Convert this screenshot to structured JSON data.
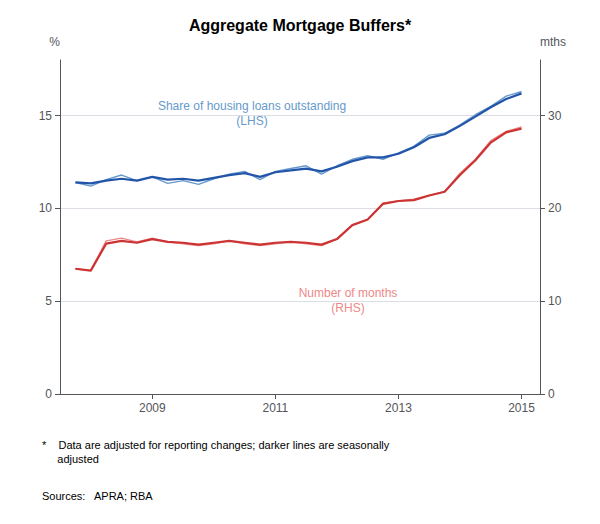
{
  "chart_data": {
    "type": "line",
    "title": "Aggregate Mortgage Buffers*",
    "ylabel": "%",
    "y2label": "mths",
    "x": [
      2007.75,
      2008.0,
      2008.25,
      2008.5,
      2008.75,
      2009.0,
      2009.25,
      2009.5,
      2009.75,
      2010.0,
      2010.25,
      2010.5,
      2010.75,
      2011.0,
      2011.25,
      2011.5,
      2011.75,
      2012.0,
      2012.25,
      2012.5,
      2012.75,
      2013.0,
      2013.25,
      2013.5,
      2013.75,
      2014.0,
      2014.25,
      2014.5,
      2014.75,
      2015.0
    ],
    "xlim": [
      2007.5,
      2015.3
    ],
    "xticks": [
      2009,
      2011,
      2013,
      2015
    ],
    "ylim": [
      0,
      18
    ],
    "yticks": [
      0,
      5,
      10,
      15
    ],
    "y2lim": [
      0,
      36
    ],
    "y2ticks": [
      0,
      10,
      20,
      30
    ],
    "grid": true,
    "series": [
      {
        "color": "#6699CC",
        "axis": "y",
        "values": [
          11.4,
          11.2,
          11.55,
          11.8,
          11.5,
          11.7,
          11.35,
          11.5,
          11.3,
          11.6,
          11.85,
          12.0,
          11.55,
          12.0,
          12.15,
          12.3,
          11.85,
          12.3,
          12.65,
          12.85,
          12.65,
          13.0,
          13.35,
          13.95,
          14.05,
          14.5,
          15.05,
          15.5,
          16.05,
          16.3
        ]
      },
      {
        "color": "#2255AA",
        "axis": "y",
        "values": [
          11.4,
          11.35,
          11.5,
          11.6,
          11.5,
          11.7,
          11.55,
          11.6,
          11.5,
          11.65,
          11.8,
          11.9,
          11.7,
          11.95,
          12.05,
          12.15,
          12.0,
          12.25,
          12.55,
          12.75,
          12.75,
          12.95,
          13.3,
          13.8,
          14.0,
          14.45,
          14.95,
          15.45,
          15.9,
          16.2
        ]
      },
      {
        "color": "#EE8888",
        "axis": "y2",
        "values": [
          13.5,
          13.3,
          16.5,
          16.8,
          16.4,
          16.8,
          16.4,
          16.2,
          16.0,
          16.2,
          16.5,
          16.2,
          16.0,
          16.2,
          16.4,
          16.2,
          16.0,
          16.7,
          18.2,
          18.8,
          20.6,
          20.8,
          21.0,
          21.4,
          21.8,
          23.8,
          25.3,
          27.3,
          28.3,
          28.8
        ]
      },
      {
        "color": "#CC3333",
        "axis": "y2",
        "values": [
          13.5,
          13.3,
          16.2,
          16.5,
          16.3,
          16.7,
          16.4,
          16.3,
          16.1,
          16.3,
          16.5,
          16.3,
          16.1,
          16.3,
          16.4,
          16.3,
          16.1,
          16.7,
          18.2,
          18.8,
          20.5,
          20.8,
          20.9,
          21.4,
          21.8,
          23.6,
          25.2,
          27.1,
          28.2,
          28.6
        ]
      }
    ],
    "annotations": [
      {
        "text": "Share of housing loans outstanding\n(LHS)",
        "color": "#6699CC"
      },
      {
        "text": "Number of months\n(RHS)",
        "color": "#EE8888"
      }
    ],
    "footnote": "*    Data are adjusted for reporting changes; darker lines are seasonally\n     adjusted",
    "sources": "Sources:   APRA; RBA"
  }
}
